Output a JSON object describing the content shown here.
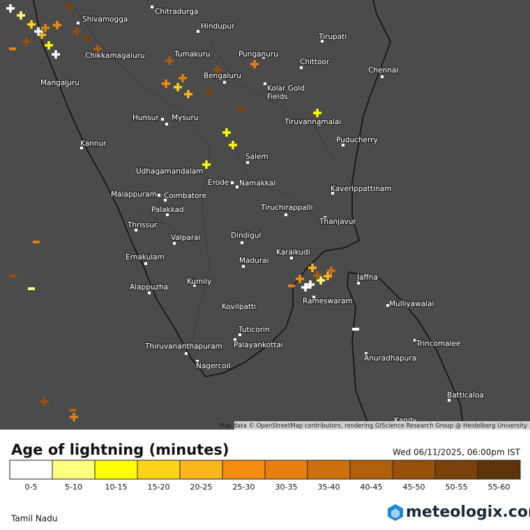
{
  "map": {
    "cities": [
      "Shivamogga",
      "Chitradurga",
      "Hindupur",
      "Tirupati",
      "Chikkamagaluru",
      "Tumakuru",
      "Punganuru",
      "Chittoor",
      "Chennai",
      "Mangaluru",
      "Bengaluru",
      "Kolar Gold",
      "Fields",
      "Hunsur",
      "Mysuru",
      "Tiruvannamalai",
      "Puducherry",
      "Kannur",
      "Salem",
      "Udhagamandalam",
      "Erode",
      "Namakkal",
      "Kaverippattinam",
      "Malappuram",
      "Coimbatore",
      "Tiruchirappalli",
      "Palakkad",
      "Thrissur",
      "Thanjavur",
      "Dindigul",
      "Valparai",
      "Karaikudi",
      "Ernakulam",
      "Madurai",
      "Jaffna",
      "Alappuzha",
      "Kumily",
      "Mulliyawalai",
      "Rameswaram",
      "Kovilpatti",
      "Tuticorin",
      "Trincomalee",
      "Palayankottai",
      "Thiruvananthapuram",
      "Anuradhapura",
      "Nagercoil",
      "Batticaloa",
      "Kandy"
    ],
    "attribution": "Map data © OpenStreetMap contributors, rendering GIScience Research Group @ Heidelberg University"
  },
  "legend": {
    "title": "Age of lightning (minutes)",
    "timestamp": "Wed 06/11/2025, 06:00pm IST",
    "items": [
      {
        "label": "0-5",
        "color": "#ffffff"
      },
      {
        "label": "5-10",
        "color": "#ffff80"
      },
      {
        "label": "10-15",
        "color": "#ffff00"
      },
      {
        "label": "15-20",
        "color": "#fdd41a"
      },
      {
        "label": "20-25",
        "color": "#fbb51d"
      },
      {
        "label": "25-30",
        "color": "#f58d10"
      },
      {
        "label": "30-35",
        "color": "#e5800f"
      },
      {
        "label": "35-40",
        "color": "#cc710d"
      },
      {
        "label": "40-45",
        "color": "#b0600b"
      },
      {
        "label": "45-50",
        "color": "#96520b"
      },
      {
        "label": "50-55",
        "color": "#7a420a"
      },
      {
        "label": "55-60",
        "color": "#5e3509"
      }
    ],
    "region": "Tamil Nadu",
    "brand": "meteologix.com"
  }
}
